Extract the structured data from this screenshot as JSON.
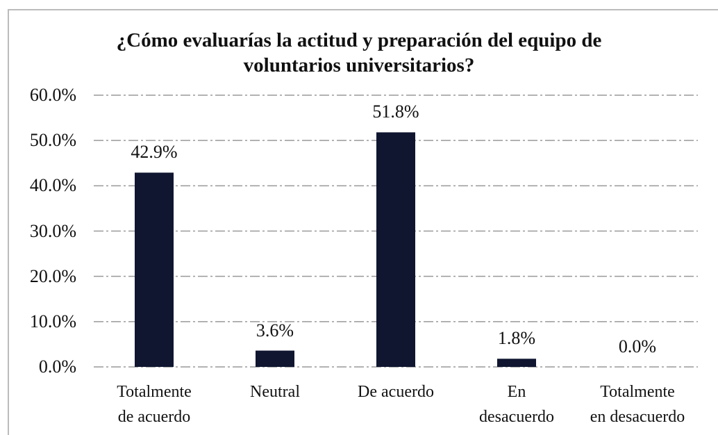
{
  "chart_data": {
    "type": "bar",
    "title": "¿Cómo evaluarías la actitud y preparación del equipo de\nvoluntarios universitarios?",
    "categories": [
      "Totalmente\nde acuerdo",
      "Neutral",
      "De acuerdo",
      "En\ndesacuerdo",
      "Totalmente\nen desacuerdo"
    ],
    "values": [
      42.9,
      3.6,
      51.8,
      1.8,
      0.0
    ],
    "value_labels": [
      "42.9%",
      "3.6%",
      "51.8%",
      "1.8%",
      "0.0%"
    ],
    "color": "#101630",
    "ylim": [
      0,
      60
    ],
    "yticks": [
      {
        "value": 0,
        "label": "0.0%"
      },
      {
        "value": 10,
        "label": "10.0%"
      },
      {
        "value": 20,
        "label": "20.0%"
      },
      {
        "value": 30,
        "label": "30.0%"
      },
      {
        "value": 40,
        "label": "40.0%"
      },
      {
        "value": 50,
        "label": "50.0%"
      },
      {
        "value": 60,
        "label": "60.0%"
      }
    ],
    "grid": true
  }
}
